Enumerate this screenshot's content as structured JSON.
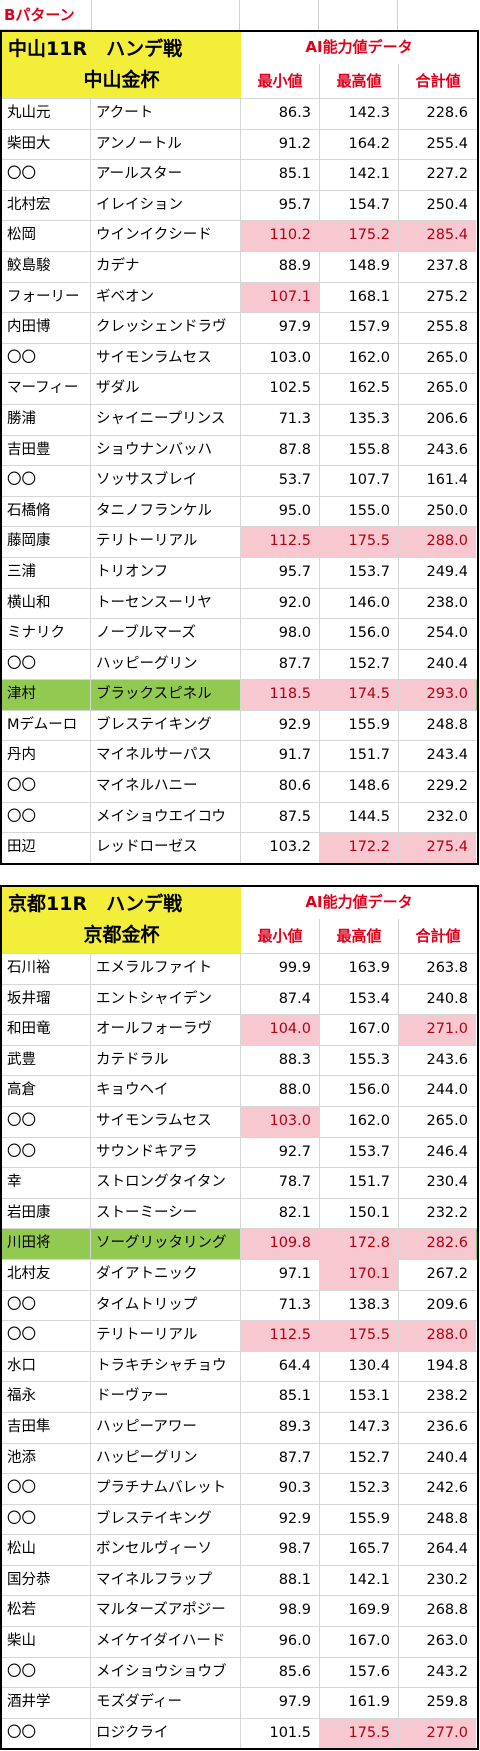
{
  "page_label": "Bパターン",
  "colors": {
    "accent_red": "#e0001b",
    "title_yellow": "#f2ee3a",
    "highlight_green": "#92c950",
    "cell_pink": "#f8c8d0"
  },
  "columns": {
    "min": "最小値",
    "max": "最高値",
    "total": "合計値"
  },
  "ai_title": "AI能力値データ",
  "races": [
    {
      "title": "中山11R　ハンデ戦",
      "subtitle": "中山金杯",
      "rows": [
        {
          "jockey": "丸山元",
          "horse": "アクート",
          "min": "86.3",
          "max": "142.3",
          "total": "228.6",
          "hl": []
        },
        {
          "jockey": "柴田大",
          "horse": "アンノートル",
          "min": "91.2",
          "max": "164.2",
          "total": "255.4",
          "hl": []
        },
        {
          "jockey": "〇〇",
          "horse": "アールスター",
          "min": "85.1",
          "max": "142.1",
          "total": "227.2",
          "hl": []
        },
        {
          "jockey": "北村宏",
          "horse": "イレイション",
          "min": "95.7",
          "max": "154.7",
          "total": "250.4",
          "hl": []
        },
        {
          "jockey": "松岡",
          "horse": "ウインイクシード",
          "min": "110.2",
          "max": "175.2",
          "total": "285.4",
          "hl": [
            "min",
            "max",
            "total"
          ]
        },
        {
          "jockey": "鮫島駿",
          "horse": "カデナ",
          "min": "88.9",
          "max": "148.9",
          "total": "237.8",
          "hl": []
        },
        {
          "jockey": "フォーリー",
          "horse": "ギベオン",
          "min": "107.1",
          "max": "168.1",
          "total": "275.2",
          "hl": [
            "min"
          ]
        },
        {
          "jockey": "内田博",
          "horse": "クレッシェンドラヴ",
          "min": "97.9",
          "max": "157.9",
          "total": "255.8",
          "hl": []
        },
        {
          "jockey": "〇〇",
          "horse": "サイモンラムセス",
          "min": "103.0",
          "max": "162.0",
          "total": "265.0",
          "hl": []
        },
        {
          "jockey": "マーフィー",
          "horse": "ザダル",
          "min": "102.5",
          "max": "162.5",
          "total": "265.0",
          "hl": []
        },
        {
          "jockey": "勝浦",
          "horse": "シャイニープリンス",
          "min": "71.3",
          "max": "135.3",
          "total": "206.6",
          "hl": []
        },
        {
          "jockey": "吉田豊",
          "horse": "ショウナンバッハ",
          "min": "87.8",
          "max": "155.8",
          "total": "243.6",
          "hl": []
        },
        {
          "jockey": "〇〇",
          "horse": "ソッサスブレイ",
          "min": "53.7",
          "max": "107.7",
          "total": "161.4",
          "hl": []
        },
        {
          "jockey": "石橋脩",
          "horse": "タニノフランケル",
          "min": "95.0",
          "max": "155.0",
          "total": "250.0",
          "hl": []
        },
        {
          "jockey": "藤岡康",
          "horse": "テリトーリアル",
          "min": "112.5",
          "max": "175.5",
          "total": "288.0",
          "hl": [
            "min",
            "max",
            "total"
          ]
        },
        {
          "jockey": "三浦",
          "horse": "トリオンフ",
          "min": "95.7",
          "max": "153.7",
          "total": "249.4",
          "hl": []
        },
        {
          "jockey": "横山和",
          "horse": "トーセンスーリヤ",
          "min": "92.0",
          "max": "146.0",
          "total": "238.0",
          "hl": []
        },
        {
          "jockey": "ミナリク",
          "horse": "ノーブルマーズ",
          "min": "98.0",
          "max": "156.0",
          "total": "254.0",
          "hl": []
        },
        {
          "jockey": "〇〇",
          "horse": "ハッピーグリン",
          "min": "87.7",
          "max": "152.7",
          "total": "240.4",
          "hl": []
        },
        {
          "jockey": "津村",
          "horse": "ブラックスピネル",
          "min": "118.5",
          "max": "174.5",
          "total": "293.0",
          "hl": [
            "min",
            "max",
            "total"
          ],
          "green": true
        },
        {
          "jockey": "Mデムーロ",
          "horse": "ブレステイキング",
          "min": "92.9",
          "max": "155.9",
          "total": "248.8",
          "hl": []
        },
        {
          "jockey": "丹内",
          "horse": "マイネルサーパス",
          "min": "91.7",
          "max": "151.7",
          "total": "243.4",
          "hl": []
        },
        {
          "jockey": "〇〇",
          "horse": "マイネルハニー",
          "min": "80.6",
          "max": "148.6",
          "total": "229.2",
          "hl": []
        },
        {
          "jockey": "〇〇",
          "horse": "メイショウエイコウ",
          "min": "87.5",
          "max": "144.5",
          "total": "232.0",
          "hl": []
        },
        {
          "jockey": "田辺",
          "horse": "レッドローゼス",
          "min": "103.2",
          "max": "172.2",
          "total": "275.4",
          "hl": [
            "max",
            "total"
          ]
        }
      ]
    },
    {
      "title": "京都11R　ハンデ戦",
      "subtitle": "京都金杯",
      "rows": [
        {
          "jockey": "石川裕",
          "horse": "エメラルファイト",
          "min": "99.9",
          "max": "163.9",
          "total": "263.8",
          "hl": []
        },
        {
          "jockey": "坂井瑠",
          "horse": "エントシャイデン",
          "min": "87.4",
          "max": "153.4",
          "total": "240.8",
          "hl": []
        },
        {
          "jockey": "和田竜",
          "horse": "オールフォーラヴ",
          "min": "104.0",
          "max": "167.0",
          "total": "271.0",
          "hl": [
            "min",
            "total"
          ]
        },
        {
          "jockey": "武豊",
          "horse": "カテドラル",
          "min": "88.3",
          "max": "155.3",
          "total": "243.6",
          "hl": []
        },
        {
          "jockey": "高倉",
          "horse": "キョウヘイ",
          "min": "88.0",
          "max": "156.0",
          "total": "244.0",
          "hl": []
        },
        {
          "jockey": "〇〇",
          "horse": "サイモンラムセス",
          "min": "103.0",
          "max": "162.0",
          "total": "265.0",
          "hl": [
            "min"
          ]
        },
        {
          "jockey": "〇〇",
          "horse": "サウンドキアラ",
          "min": "92.7",
          "max": "153.7",
          "total": "246.4",
          "hl": []
        },
        {
          "jockey": "幸",
          "horse": "ストロングタイタン",
          "min": "78.7",
          "max": "151.7",
          "total": "230.4",
          "hl": []
        },
        {
          "jockey": "岩田康",
          "horse": "ストーミーシー",
          "min": "82.1",
          "max": "150.1",
          "total": "232.2",
          "hl": []
        },
        {
          "jockey": "川田将",
          "horse": "ソーグリッタリング",
          "min": "109.8",
          "max": "172.8",
          "total": "282.6",
          "hl": [
            "min",
            "max",
            "total"
          ],
          "green": true
        },
        {
          "jockey": "北村友",
          "horse": "ダイアトニック",
          "min": "97.1",
          "max": "170.1",
          "total": "267.2",
          "hl": [
            "max"
          ]
        },
        {
          "jockey": "〇〇",
          "horse": "タイムトリップ",
          "min": "71.3",
          "max": "138.3",
          "total": "209.6",
          "hl": []
        },
        {
          "jockey": "〇〇",
          "horse": "テリトーリアル",
          "min": "112.5",
          "max": "175.5",
          "total": "288.0",
          "hl": [
            "min",
            "max",
            "total"
          ]
        },
        {
          "jockey": "水口",
          "horse": "トラキチシャチョウ",
          "min": "64.4",
          "max": "130.4",
          "total": "194.8",
          "hl": []
        },
        {
          "jockey": "福永",
          "horse": "ドーヴァー",
          "min": "85.1",
          "max": "153.1",
          "total": "238.2",
          "hl": []
        },
        {
          "jockey": "吉田隼",
          "horse": "ハッピーアワー",
          "min": "89.3",
          "max": "147.3",
          "total": "236.6",
          "hl": []
        },
        {
          "jockey": "池添",
          "horse": "ハッピーグリン",
          "min": "87.7",
          "max": "152.7",
          "total": "240.4",
          "hl": []
        },
        {
          "jockey": "〇〇",
          "horse": "プラチナムバレット",
          "min": "90.3",
          "max": "152.3",
          "total": "242.6",
          "hl": []
        },
        {
          "jockey": "〇〇",
          "horse": "ブレステイキング",
          "min": "92.9",
          "max": "155.9",
          "total": "248.8",
          "hl": []
        },
        {
          "jockey": "松山",
          "horse": "ボンセルヴィーソ",
          "min": "98.7",
          "max": "165.7",
          "total": "264.4",
          "hl": []
        },
        {
          "jockey": "国分恭",
          "horse": "マイネルフラップ",
          "min": "88.1",
          "max": "142.1",
          "total": "230.2",
          "hl": []
        },
        {
          "jockey": "松若",
          "horse": "マルターズアポジー",
          "min": "98.9",
          "max": "169.9",
          "total": "268.8",
          "hl": []
        },
        {
          "jockey": "柴山",
          "horse": "メイケイダイハード",
          "min": "96.0",
          "max": "167.0",
          "total": "263.0",
          "hl": []
        },
        {
          "jockey": "〇〇",
          "horse": "メイショウショウブ",
          "min": "85.6",
          "max": "157.6",
          "total": "243.2",
          "hl": []
        },
        {
          "jockey": "酒井学",
          "horse": "モズダディー",
          "min": "97.9",
          "max": "161.9",
          "total": "259.8",
          "hl": []
        },
        {
          "jockey": "〇〇",
          "horse": "ロジクライ",
          "min": "101.5",
          "max": "175.5",
          "total": "277.0",
          "hl": [
            "max",
            "total"
          ]
        }
      ]
    }
  ]
}
